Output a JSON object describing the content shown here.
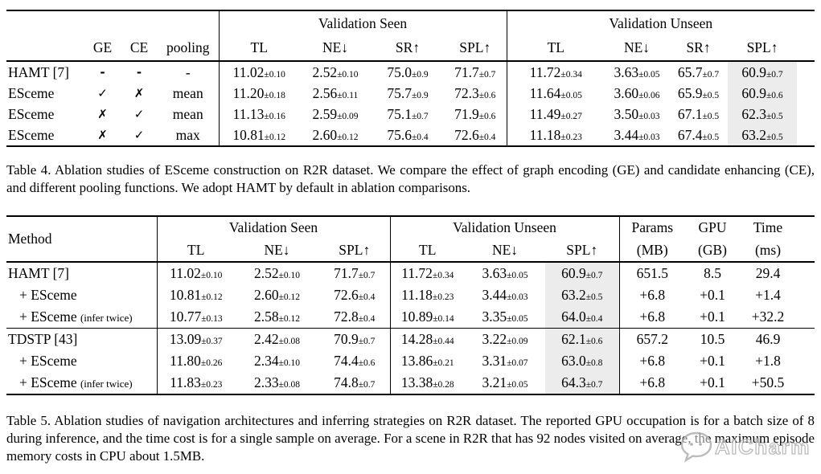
{
  "colors": {
    "highlight": "#ececec",
    "rule": "#000000",
    "text": "#000000",
    "watermark_outline": "#adadad"
  },
  "table4": {
    "header": {
      "seen": "Validation Seen",
      "unseen": "Validation Unseen",
      "cols": [
        "GE",
        "CE",
        "pooling",
        "TL",
        "NE↓",
        "SR↑",
        "SPL↑",
        "TL",
        "NE↓",
        "SR↑",
        "SPL↑"
      ]
    },
    "rows": [
      {
        "cells": [
          "HAMT [7]",
          "-",
          "-",
          "-",
          "11.02±0.10",
          "2.52±0.10",
          "75.0±0.9",
          "71.7±0.7",
          "11.72±0.34",
          "3.63±0.05",
          "65.7±0.7",
          "60.9±0.7"
        ]
      },
      {
        "cells": [
          "ESceme",
          "✓",
          "✗",
          "mean",
          "11.20±0.18",
          "2.56±0.11",
          "75.7±0.9",
          "72.3±0.6",
          "11.64±0.05",
          "3.60±0.06",
          "65.9±0.5",
          "60.9±0.6"
        ]
      },
      {
        "cells": [
          "ESceme",
          "✗",
          "✓",
          "mean",
          "11.13±0.16",
          "2.59±0.09",
          "75.1±0.7",
          "71.9±0.6",
          "11.49±0.27",
          "3.50±0.03",
          "67.1±0.5",
          "62.3±0.5"
        ]
      },
      {
        "cells": [
          "ESceme",
          "✗",
          "✓",
          "max",
          "10.81±0.12",
          "2.60±0.12",
          "75.6±0.4",
          "72.6±0.4",
          "11.18±0.23",
          "3.44±0.03",
          "67.4±0.5",
          "63.2±0.5"
        ]
      }
    ],
    "caption": "Table 4. Ablation studies of ESceme construction on R2R dataset. We compare the effect of graph encoding (GE) and candidate enhancing (CE), and different pooling functions. We adopt HAMT by default in ablation comparisons."
  },
  "table5": {
    "header": {
      "method": "Method",
      "seen": "Validation Seen",
      "unseen": "Validation Unseen",
      "params": "Params",
      "params_unit": "(MB)",
      "gpu": "GPU",
      "gpu_unit": "(GB)",
      "time": "Time",
      "time_unit": "(ms)",
      "cols": [
        "TL",
        "NE↓",
        "SPL↑",
        "TL",
        "NE↓",
        "SPL↑"
      ]
    },
    "groups": [
      {
        "rows": [
          {
            "cells": [
              "HAMT [7]",
              "11.02±0.10",
              "2.52±0.10",
              "71.7±0.7",
              "11.72±0.34",
              "3.63±0.05",
              "60.9±0.7",
              "651.5",
              "8.5",
              "29.4"
            ]
          },
          {
            "cells": [
              "+ ESceme",
              "10.81±0.12",
              "2.60±0.12",
              "72.6±0.4",
              "11.18±0.23",
              "3.44±0.03",
              "63.2±0.5",
              "+6.8",
              "+0.1",
              "+1.4"
            ]
          },
          {
            "cells": [
              "+ ESceme (infer twice)",
              "10.77±0.13",
              "2.58±0.12",
              "72.8±0.4",
              "10.89±0.14",
              "3.35±0.05",
              "64.0±0.4",
              "+6.8",
              "+0.1",
              "+32.2"
            ]
          }
        ]
      },
      {
        "rows": [
          {
            "cells": [
              "TDSTP [43]",
              "13.09±0.37",
              "2.42±0.08",
              "70.9±0.7",
              "14.28±0.44",
              "3.22±0.09",
              "62.1±0.6",
              "657.2",
              "10.5",
              "46.9"
            ]
          },
          {
            "cells": [
              "+ ESceme",
              "11.80±0.26",
              "2.34±0.10",
              "74.4±0.6",
              "13.86±0.21",
              "3.31±0.07",
              "63.0±0.8",
              "+6.8",
              "+0.1",
              "+1.8"
            ]
          },
          {
            "cells": [
              "+ ESceme (infer twice)",
              "11.83±0.23",
              "2.33±0.08",
              "74.8±0.7",
              "13.38±0.28",
              "3.21±0.05",
              "64.3±0.7",
              "+6.8",
              "+0.1",
              "+50.5"
            ]
          }
        ]
      }
    ],
    "caption": "Table 5. Ablation studies of navigation architectures and inferring strategies on R2R dataset. The reported GPU occupation is for a batch size of 8 during inference, and the time cost is for a single sample on average. For a scene in R2R that has 92 nodes visited on average, the maximum episode memory costs in CPU about 1.5MB."
  },
  "watermark": {
    "text": "AICharm",
    "icon": "chat-bubble-logo"
  }
}
